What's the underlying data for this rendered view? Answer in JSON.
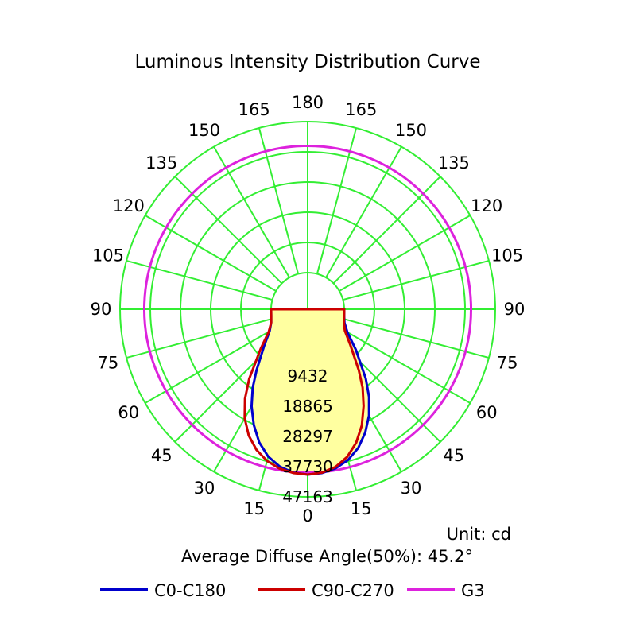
{
  "chart_data": {
    "type": "polar",
    "title": "Luminous Intensity Distribution Curve",
    "unit_label": "Unit: cd",
    "diffuse_angle_label": "Average Diffuse Angle(50%): 45.2°",
    "angle_labels_left": [
      "0",
      "15",
      "30",
      "45",
      "60",
      "75",
      "90",
      "105",
      "120",
      "135",
      "150",
      "165",
      "180"
    ],
    "angle_labels_right": [
      "15",
      "30",
      "45",
      "60",
      "75",
      "90",
      "105",
      "120",
      "135",
      "150",
      "165"
    ],
    "radial_ticks": [
      "9432",
      "18865",
      "28297",
      "37730",
      "47163"
    ],
    "radial_values": [
      9432,
      18865,
      28297,
      37730,
      47163
    ],
    "rlim": [
      0,
      47163
    ],
    "grid_color": "#33ee33",
    "fill_color": "#ffffa0",
    "series": [
      {
        "name": "C0-C180",
        "color": "#0000cc",
        "angles_deg": [
          0,
          5,
          10,
          15,
          20,
          25,
          30,
          35,
          40,
          50,
          60,
          70,
          80,
          90
        ],
        "left_values": [
          40200,
          39800,
          38500,
          36200,
          32800,
          28400,
          23600,
          18500,
          13400,
          6300,
          2300,
          700,
          150,
          0
        ],
        "right_values": [
          40200,
          39900,
          39000,
          37300,
          34700,
          31100,
          26900,
          22000,
          16800,
          8200,
          2900,
          800,
          150,
          0
        ]
      },
      {
        "name": "C90-C270",
        "color": "#cc0000",
        "angles_deg": [
          0,
          5,
          10,
          15,
          20,
          25,
          30,
          35,
          40,
          50,
          60,
          70,
          80,
          90
        ],
        "left_values": [
          40200,
          39900,
          39100,
          37600,
          35300,
          32100,
          27900,
          22700,
          17000,
          7700,
          2600,
          700,
          150,
          0
        ],
        "right_values": [
          40200,
          39800,
          38600,
          36300,
          32900,
          28600,
          23500,
          18500,
          13400,
          6000,
          2000,
          600,
          150,
          0
        ]
      },
      {
        "name": "G3",
        "color": "#dd22dd",
        "radius_value": 39600
      }
    ],
    "legend": [
      {
        "name": "C0-C180",
        "color": "#0000cc"
      },
      {
        "name": "C90-C270",
        "color": "#cc0000"
      },
      {
        "name": "G3",
        "color": "#dd22dd"
      }
    ]
  }
}
